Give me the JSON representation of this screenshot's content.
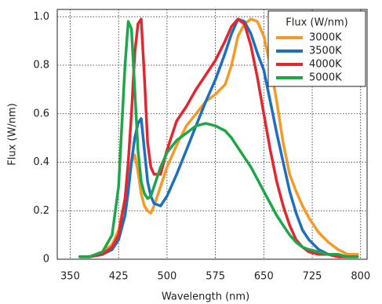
{
  "chart_data": {
    "type": "line",
    "xlabel": "Wavelength (nm)",
    "ylabel": "Flux (W/nm)",
    "legend_title": "Flux (W/nm)",
    "legend_position": "upper right",
    "grid": true,
    "x": [
      365,
      380,
      400,
      415,
      425,
      435,
      440,
      445,
      450,
      455,
      460,
      465,
      470,
      475,
      480,
      490,
      500,
      515,
      530,
      545,
      560,
      575,
      590,
      600,
      610,
      620,
      630,
      640,
      650,
      660,
      670,
      680,
      690,
      700,
      710,
      720,
      735,
      750,
      765,
      780,
      795
    ],
    "xlim": [
      330,
      810
    ],
    "xticks": [
      350,
      425,
      500,
      575,
      650,
      725,
      800
    ],
    "ylim": [
      0,
      1.03
    ],
    "yticks": [
      0,
      0.2,
      0.4,
      0.6,
      0.8,
      {
        "value": 1,
        "label": "1.0"
      }
    ],
    "series": [
      {
        "name": "3000K",
        "color": "#f39a2a",
        "values": [
          0.01,
          0.01,
          0.03,
          0.06,
          0.12,
          0.25,
          0.33,
          0.4,
          0.43,
          0.36,
          0.27,
          0.22,
          0.2,
          0.19,
          0.22,
          0.3,
          0.38,
          0.47,
          0.55,
          0.6,
          0.65,
          0.68,
          0.72,
          0.8,
          0.92,
          0.97,
          0.99,
          0.98,
          0.92,
          0.8,
          0.65,
          0.48,
          0.35,
          0.28,
          0.22,
          0.17,
          0.11,
          0.07,
          0.04,
          0.02,
          0.02
        ]
      },
      {
        "name": "3500K",
        "color": "#1f6fbf",
        "values": [
          0.01,
          0.01,
          0.02,
          0.04,
          0.08,
          0.18,
          0.28,
          0.4,
          0.5,
          0.56,
          0.58,
          0.45,
          0.32,
          0.26,
          0.23,
          0.22,
          0.26,
          0.35,
          0.45,
          0.55,
          0.65,
          0.74,
          0.85,
          0.93,
          0.99,
          0.98,
          0.93,
          0.85,
          0.78,
          0.65,
          0.52,
          0.4,
          0.28,
          0.19,
          0.12,
          0.08,
          0.04,
          0.02,
          0.01,
          0.01,
          0.01
        ]
      },
      {
        "name": "4000K",
        "color": "#e3262f",
        "values": [
          0.01,
          0.01,
          0.02,
          0.05,
          0.1,
          0.25,
          0.4,
          0.6,
          0.85,
          0.97,
          0.99,
          0.75,
          0.48,
          0.38,
          0.35,
          0.35,
          0.45,
          0.57,
          0.63,
          0.7,
          0.76,
          0.82,
          0.9,
          0.96,
          0.99,
          0.97,
          0.88,
          0.75,
          0.6,
          0.45,
          0.32,
          0.22,
          0.14,
          0.08,
          0.05,
          0.03,
          0.02,
          0.02,
          0.01,
          0.01,
          0.01
        ]
      },
      {
        "name": "5000K",
        "color": "#1fa64a",
        "values": [
          0.01,
          0.01,
          0.03,
          0.1,
          0.3,
          0.8,
          0.98,
          0.95,
          0.7,
          0.45,
          0.32,
          0.27,
          0.25,
          0.26,
          0.3,
          0.38,
          0.44,
          0.49,
          0.52,
          0.55,
          0.56,
          0.55,
          0.53,
          0.5,
          0.46,
          0.42,
          0.38,
          0.33,
          0.28,
          0.23,
          0.18,
          0.14,
          0.1,
          0.07,
          0.05,
          0.04,
          0.03,
          0.02,
          0.02,
          0.01,
          0.01
        ]
      }
    ]
  }
}
